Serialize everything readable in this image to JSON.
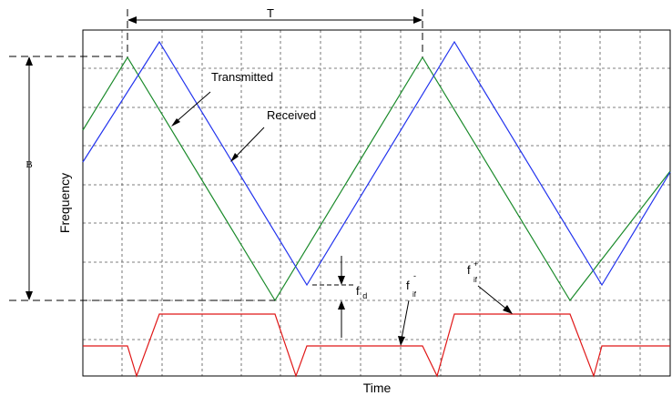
{
  "labels": {
    "period": "T",
    "bandwidth": "B",
    "y_axis": "Frequency",
    "x_axis": "Time",
    "transmitted": "Transmitted",
    "received": "Received",
    "doppler_main": "f",
    "doppler_sub": "d",
    "if_minus_main": "f",
    "if_minus_sup": "-",
    "if_minus_sub": "if",
    "if_plus_main": "f",
    "if_plus_sup": "+",
    "if_plus_sub": "if"
  },
  "colors": {
    "transmitted": "#1a8a2a",
    "received": "#2233ee",
    "beat": "#e01818",
    "grid": "#555555",
    "frame": "#000000"
  },
  "chart_data": {
    "type": "line",
    "transmitted_turning_points": [
      {
        "t": 0.0,
        "f": "low"
      },
      {
        "t": 0.5,
        "f": "high"
      },
      {
        "t": 1.0,
        "f": "low"
      },
      {
        "t": 1.5,
        "f": "high"
      }
    ],
    "received_offset": "delay plus doppler shift f_d",
    "series": [
      {
        "name": "Transmitted"
      },
      {
        "name": "Received"
      },
      {
        "name": "f_if"
      }
    ]
  }
}
